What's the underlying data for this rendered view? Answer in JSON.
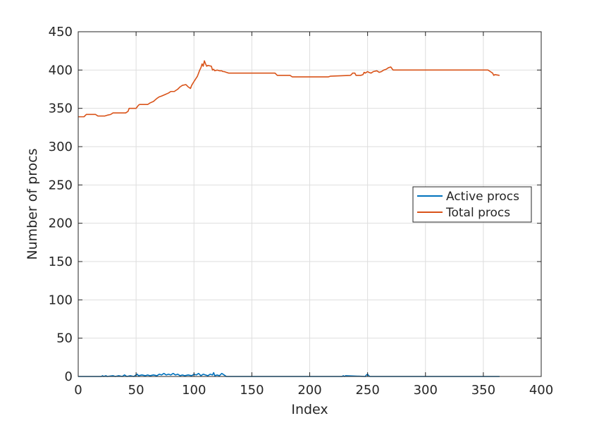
{
  "chart_data": {
    "type": "line",
    "title": "",
    "xlabel": "Index",
    "ylabel": "Number of procs",
    "xlim": [
      0,
      400
    ],
    "ylim": [
      0,
      450
    ],
    "xticks": [
      0,
      50,
      100,
      150,
      200,
      250,
      300,
      350,
      400
    ],
    "yticks": [
      0,
      50,
      100,
      150,
      200,
      250,
      300,
      350,
      400,
      450
    ],
    "grid": true,
    "legend_position": "right",
    "series": [
      {
        "name": "Active procs",
        "color": "#0072BD",
        "x": [
          0,
          20,
          21,
          22,
          24,
          25,
          30,
          32,
          35,
          38,
          40,
          42,
          45,
          48,
          50,
          51,
          52,
          55,
          58,
          60,
          62,
          65,
          68,
          70,
          72,
          74,
          76,
          78,
          80,
          82,
          84,
          86,
          88,
          90,
          92,
          95,
          98,
          100,
          102,
          104,
          106,
          108,
          110,
          112,
          114,
          116,
          117,
          118,
          120,
          122,
          124,
          126,
          128,
          140,
          200,
          228,
          229,
          230,
          231,
          248,
          249,
          250,
          251,
          252,
          300,
          364
        ],
        "y": [
          0,
          0,
          1,
          0,
          1,
          0,
          1,
          0,
          1,
          0,
          2,
          0,
          1,
          0,
          2,
          3,
          1,
          2,
          1,
          2,
          1,
          2,
          1,
          3,
          2,
          4,
          2,
          3,
          2,
          4,
          2,
          3,
          1,
          2,
          1,
          2,
          1,
          3,
          2,
          4,
          1,
          3,
          2,
          1,
          3,
          2,
          5,
          1,
          2,
          1,
          4,
          2,
          0,
          0,
          0,
          0,
          1,
          0,
          1,
          0,
          2,
          3,
          1,
          0,
          0,
          0
        ]
      },
      {
        "name": "Total procs",
        "color": "#D95319",
        "x": [
          0,
          5,
          7,
          15,
          17,
          23,
          25,
          28,
          30,
          41,
          42,
          43,
          44,
          50,
          51,
          52,
          53,
          60,
          62,
          65,
          68,
          70,
          72,
          75,
          78,
          80,
          83,
          86,
          88,
          90,
          93,
          95,
          97,
          98,
          100,
          103,
          105,
          106,
          107,
          108,
          109,
          110,
          111,
          112,
          115,
          116,
          117,
          118,
          120,
          122,
          124,
          125,
          126,
          128,
          130,
          140,
          150,
          170,
          172,
          175,
          183,
          185,
          200,
          216,
          218,
          235,
          236,
          237,
          239,
          240,
          242,
          244,
          246,
          247,
          248,
          250,
          251,
          253,
          255,
          258,
          260,
          262,
          264,
          266,
          268,
          270,
          271,
          272,
          273,
          274,
          300,
          330,
          354,
          356,
          358,
          359,
          360,
          364
        ],
        "y": [
          339,
          339,
          342,
          342,
          340,
          340,
          341,
          342,
          344,
          344,
          345,
          346,
          350,
          350,
          352,
          354,
          355,
          355,
          357,
          359,
          363,
          365,
          366,
          368,
          370,
          372,
          372,
          375,
          378,
          380,
          381,
          378,
          376,
          380,
          385,
          392,
          400,
          403,
          408,
          405,
          412,
          408,
          405,
          406,
          405,
          400,
          401,
          399,
          400,
          399,
          399,
          398,
          398,
          397,
          396,
          396,
          396,
          396,
          393,
          393,
          393,
          391,
          391,
          391,
          392,
          393,
          394,
          396,
          396,
          393,
          393,
          393,
          394,
          397,
          396,
          398,
          397,
          396,
          398,
          399,
          397,
          398,
          400,
          401,
          403,
          404,
          402,
          400,
          400,
          400,
          400,
          400,
          400,
          398,
          396,
          393,
          394,
          393
        ]
      }
    ]
  }
}
